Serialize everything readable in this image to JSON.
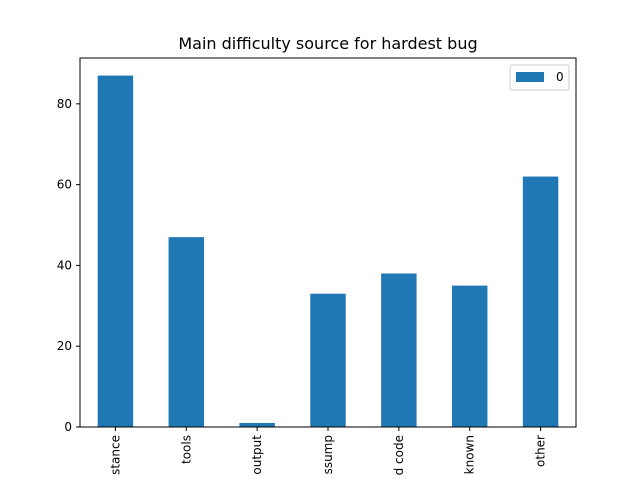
{
  "chart_data": {
    "type": "bar",
    "title": "Main difficulty source for hardest bug",
    "categories": [
      "stance",
      "tools",
      "output",
      "ssump",
      "d code",
      "known",
      "other"
    ],
    "series": [
      {
        "name": "0",
        "values": [
          87,
          47,
          1,
          33,
          38,
          35,
          62
        ],
        "color": "#1f77b4"
      }
    ],
    "xlabel": "",
    "ylabel": "",
    "ylim": [
      0,
      91.35
    ],
    "yticks": [
      0,
      20,
      40,
      60,
      80
    ],
    "grid": false,
    "legend_position": "top-right"
  }
}
